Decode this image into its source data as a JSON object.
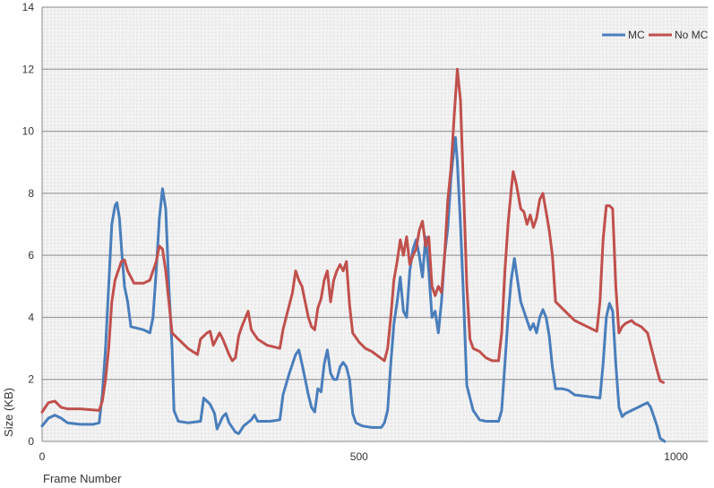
{
  "chart_data": {
    "type": "line",
    "title": "",
    "xlabel": "Frame Number",
    "ylabel": "Size (KB)",
    "xlim": [
      0,
      1050
    ],
    "ylim": [
      0,
      14
    ],
    "x_ticks": [
      "0",
      "500",
      "1000"
    ],
    "y_ticks": [
      "0",
      "2",
      "4",
      "6",
      "8",
      "10",
      "12",
      "14"
    ],
    "grid": "horizontal",
    "legend_position": "top-right",
    "series": [
      {
        "name": "MC",
        "color": "#4a7ebb",
        "points": [
          [
            0,
            0.5
          ],
          [
            10,
            0.75
          ],
          [
            20,
            0.85
          ],
          [
            30,
            0.75
          ],
          [
            40,
            0.6
          ],
          [
            60,
            0.55
          ],
          [
            80,
            0.55
          ],
          [
            90,
            0.6
          ],
          [
            95,
            1.5
          ],
          [
            100,
            3
          ],
          [
            105,
            5
          ],
          [
            110,
            7
          ],
          [
            115,
            7.6
          ],
          [
            118,
            7.7
          ],
          [
            122,
            7.2
          ],
          [
            126,
            6
          ],
          [
            130,
            5
          ],
          [
            135,
            4.5
          ],
          [
            140,
            3.7
          ],
          [
            150,
            3.65
          ],
          [
            160,
            3.6
          ],
          [
            165,
            3.55
          ],
          [
            170,
            3.5
          ],
          [
            175,
            4
          ],
          [
            180,
            5.5
          ],
          [
            185,
            7.2
          ],
          [
            190,
            8.15
          ],
          [
            195,
            7.5
          ],
          [
            200,
            5
          ],
          [
            205,
            3
          ],
          [
            208,
            1
          ],
          [
            215,
            0.65
          ],
          [
            230,
            0.6
          ],
          [
            250,
            0.65
          ],
          [
            255,
            1.4
          ],
          [
            265,
            1.2
          ],
          [
            272,
            0.9
          ],
          [
            276,
            0.4
          ],
          [
            285,
            0.8
          ],
          [
            290,
            0.9
          ],
          [
            295,
            0.6
          ],
          [
            305,
            0.3
          ],
          [
            310,
            0.25
          ],
          [
            318,
            0.5
          ],
          [
            330,
            0.7
          ],
          [
            335,
            0.85
          ],
          [
            340,
            0.65
          ],
          [
            360,
            0.65
          ],
          [
            375,
            0.7
          ],
          [
            380,
            1.5
          ],
          [
            390,
            2.2
          ],
          [
            400,
            2.8
          ],
          [
            405,
            2.95
          ],
          [
            410,
            2.5
          ],
          [
            415,
            2
          ],
          [
            420,
            1.5
          ],
          [
            425,
            1.1
          ],
          [
            430,
            0.95
          ],
          [
            435,
            1.7
          ],
          [
            440,
            1.6
          ],
          [
            445,
            2.5
          ],
          [
            450,
            2.95
          ],
          [
            455,
            2.2
          ],
          [
            460,
            2
          ],
          [
            465,
            2
          ],
          [
            470,
            2.4
          ],
          [
            475,
            2.55
          ],
          [
            480,
            2.4
          ],
          [
            485,
            2
          ],
          [
            490,
            0.9
          ],
          [
            495,
            0.6
          ],
          [
            505,
            0.5
          ],
          [
            520,
            0.45
          ],
          [
            535,
            0.45
          ],
          [
            540,
            0.6
          ],
          [
            545,
            1
          ],
          [
            550,
            2.5
          ],
          [
            555,
            3.8
          ],
          [
            560,
            4.5
          ],
          [
            565,
            5.3
          ],
          [
            570,
            4.2
          ],
          [
            575,
            4
          ],
          [
            580,
            5.5
          ],
          [
            585,
            6.2
          ],
          [
            590,
            6.5
          ],
          [
            595,
            6
          ],
          [
            600,
            5.3
          ],
          [
            605,
            6.6
          ],
          [
            610,
            5.5
          ],
          [
            615,
            4
          ],
          [
            620,
            4.2
          ],
          [
            625,
            3.5
          ],
          [
            630,
            4.5
          ],
          [
            635,
            6
          ],
          [
            640,
            6.9
          ],
          [
            645,
            8.5
          ],
          [
            650,
            9.5
          ],
          [
            652,
            9.8
          ],
          [
            655,
            9
          ],
          [
            660,
            7
          ],
          [
            665,
            4.5
          ],
          [
            670,
            1.8
          ],
          [
            680,
            1
          ],
          [
            690,
            0.7
          ],
          [
            700,
            0.65
          ],
          [
            710,
            0.65
          ],
          [
            720,
            0.65
          ],
          [
            725,
            1
          ],
          [
            730,
            2.5
          ],
          [
            735,
            4
          ],
          [
            740,
            5.2
          ],
          [
            745,
            5.9
          ],
          [
            750,
            5.2
          ],
          [
            755,
            4.5
          ],
          [
            760,
            4.2
          ],
          [
            765,
            3.9
          ],
          [
            770,
            3.6
          ],
          [
            775,
            3.8
          ],
          [
            780,
            3.5
          ],
          [
            785,
            4
          ],
          [
            790,
            4.25
          ],
          [
            795,
            4
          ],
          [
            800,
            3.4
          ],
          [
            805,
            2.4
          ],
          [
            810,
            1.7
          ],
          [
            820,
            1.7
          ],
          [
            830,
            1.65
          ],
          [
            840,
            1.5
          ],
          [
            860,
            1.45
          ],
          [
            880,
            1.4
          ],
          [
            885,
            2.5
          ],
          [
            890,
            4
          ],
          [
            895,
            4.45
          ],
          [
            900,
            4.2
          ],
          [
            905,
            2.5
          ],
          [
            910,
            1.1
          ],
          [
            915,
            0.8
          ],
          [
            920,
            0.9
          ],
          [
            930,
            1
          ],
          [
            940,
            1.1
          ],
          [
            950,
            1.2
          ],
          [
            955,
            1.25
          ],
          [
            960,
            1.1
          ],
          [
            965,
            0.8
          ],
          [
            970,
            0.5
          ],
          [
            975,
            0.1
          ],
          [
            982,
            0
          ]
        ]
      },
      {
        "name": "No MC",
        "color": "#c0504d",
        "points": [
          [
            0,
            0.95
          ],
          [
            5,
            1.1
          ],
          [
            10,
            1.25
          ],
          [
            20,
            1.3
          ],
          [
            30,
            1.1
          ],
          [
            40,
            1.05
          ],
          [
            60,
            1.05
          ],
          [
            80,
            1.02
          ],
          [
            90,
            1
          ],
          [
            95,
            1.3
          ],
          [
            100,
            2
          ],
          [
            105,
            3
          ],
          [
            110,
            4.5
          ],
          [
            115,
            5.2
          ],
          [
            120,
            5.5
          ],
          [
            125,
            5.8
          ],
          [
            130,
            5.85
          ],
          [
            135,
            5.5
          ],
          [
            140,
            5.3
          ],
          [
            145,
            5.1
          ],
          [
            160,
            5.1
          ],
          [
            170,
            5.2
          ],
          [
            175,
            5.5
          ],
          [
            180,
            5.8
          ],
          [
            185,
            6.3
          ],
          [
            190,
            6.2
          ],
          [
            195,
            5.5
          ],
          [
            200,
            4.5
          ],
          [
            205,
            3.5
          ],
          [
            215,
            3.3
          ],
          [
            230,
            3
          ],
          [
            245,
            2.8
          ],
          [
            250,
            3.3
          ],
          [
            260,
            3.5
          ],
          [
            265,
            3.55
          ],
          [
            270,
            3.1
          ],
          [
            280,
            3.5
          ],
          [
            285,
            3.3
          ],
          [
            295,
            2.8
          ],
          [
            300,
            2.6
          ],
          [
            305,
            2.7
          ],
          [
            310,
            3.4
          ],
          [
            315,
            3.7
          ],
          [
            325,
            4.2
          ],
          [
            330,
            3.6
          ],
          [
            340,
            3.3
          ],
          [
            355,
            3.1
          ],
          [
            375,
            3
          ],
          [
            380,
            3.6
          ],
          [
            385,
            4
          ],
          [
            395,
            4.8
          ],
          [
            400,
            5.5
          ],
          [
            405,
            5.2
          ],
          [
            410,
            5
          ],
          [
            420,
            4
          ],
          [
            425,
            3.7
          ],
          [
            430,
            3.6
          ],
          [
            435,
            4.3
          ],
          [
            440,
            4.6
          ],
          [
            445,
            5.2
          ],
          [
            450,
            5.5
          ],
          [
            455,
            4.5
          ],
          [
            460,
            5.2
          ],
          [
            465,
            5.5
          ],
          [
            470,
            5.7
          ],
          [
            475,
            5.5
          ],
          [
            480,
            5.8
          ],
          [
            485,
            4.4
          ],
          [
            490,
            3.5
          ],
          [
            500,
            3.2
          ],
          [
            510,
            3
          ],
          [
            520,
            2.9
          ],
          [
            530,
            2.75
          ],
          [
            540,
            2.6
          ],
          [
            545,
            3
          ],
          [
            550,
            4
          ],
          [
            555,
            5.2
          ],
          [
            560,
            5.8
          ],
          [
            565,
            6.5
          ],
          [
            570,
            6
          ],
          [
            575,
            6.6
          ],
          [
            580,
            5.7
          ],
          [
            585,
            6
          ],
          [
            590,
            6.2
          ],
          [
            595,
            6.8
          ],
          [
            600,
            7.1
          ],
          [
            605,
            6.3
          ],
          [
            610,
            6.6
          ],
          [
            615,
            5
          ],
          [
            620,
            4.7
          ],
          [
            625,
            5
          ],
          [
            630,
            4.8
          ],
          [
            635,
            6
          ],
          [
            640,
            7.8
          ],
          [
            645,
            8.8
          ],
          [
            650,
            10.5
          ],
          [
            655,
            12
          ],
          [
            660,
            11
          ],
          [
            665,
            8
          ],
          [
            670,
            5
          ],
          [
            675,
            3.3
          ],
          [
            680,
            3
          ],
          [
            690,
            2.9
          ],
          [
            700,
            2.7
          ],
          [
            710,
            2.6
          ],
          [
            720,
            2.6
          ],
          [
            725,
            3.5
          ],
          [
            730,
            5.5
          ],
          [
            735,
            7
          ],
          [
            740,
            8.1
          ],
          [
            743,
            8.7
          ],
          [
            748,
            8.3
          ],
          [
            755,
            7.5
          ],
          [
            760,
            7.4
          ],
          [
            765,
            7
          ],
          [
            770,
            7.3
          ],
          [
            775,
            6.9
          ],
          [
            780,
            7.2
          ],
          [
            785,
            7.8
          ],
          [
            790,
            8
          ],
          [
            795,
            7.4
          ],
          [
            800,
            6.8
          ],
          [
            805,
            6
          ],
          [
            810,
            4.5
          ],
          [
            820,
            4.3
          ],
          [
            830,
            4.1
          ],
          [
            840,
            3.9
          ],
          [
            850,
            3.8
          ],
          [
            860,
            3.7
          ],
          [
            870,
            3.6
          ],
          [
            875,
            3.55
          ],
          [
            880,
            4.5
          ],
          [
            885,
            6.5
          ],
          [
            890,
            7.6
          ],
          [
            895,
            7.6
          ],
          [
            900,
            7.5
          ],
          [
            905,
            5
          ],
          [
            910,
            3.5
          ],
          [
            915,
            3.7
          ],
          [
            920,
            3.8
          ],
          [
            930,
            3.9
          ],
          [
            935,
            3.8
          ],
          [
            945,
            3.7
          ],
          [
            950,
            3.6
          ],
          [
            955,
            3.5
          ],
          [
            960,
            3.1
          ],
          [
            965,
            2.7
          ],
          [
            970,
            2.3
          ],
          [
            975,
            1.95
          ],
          [
            980,
            1.9
          ]
        ]
      }
    ]
  }
}
